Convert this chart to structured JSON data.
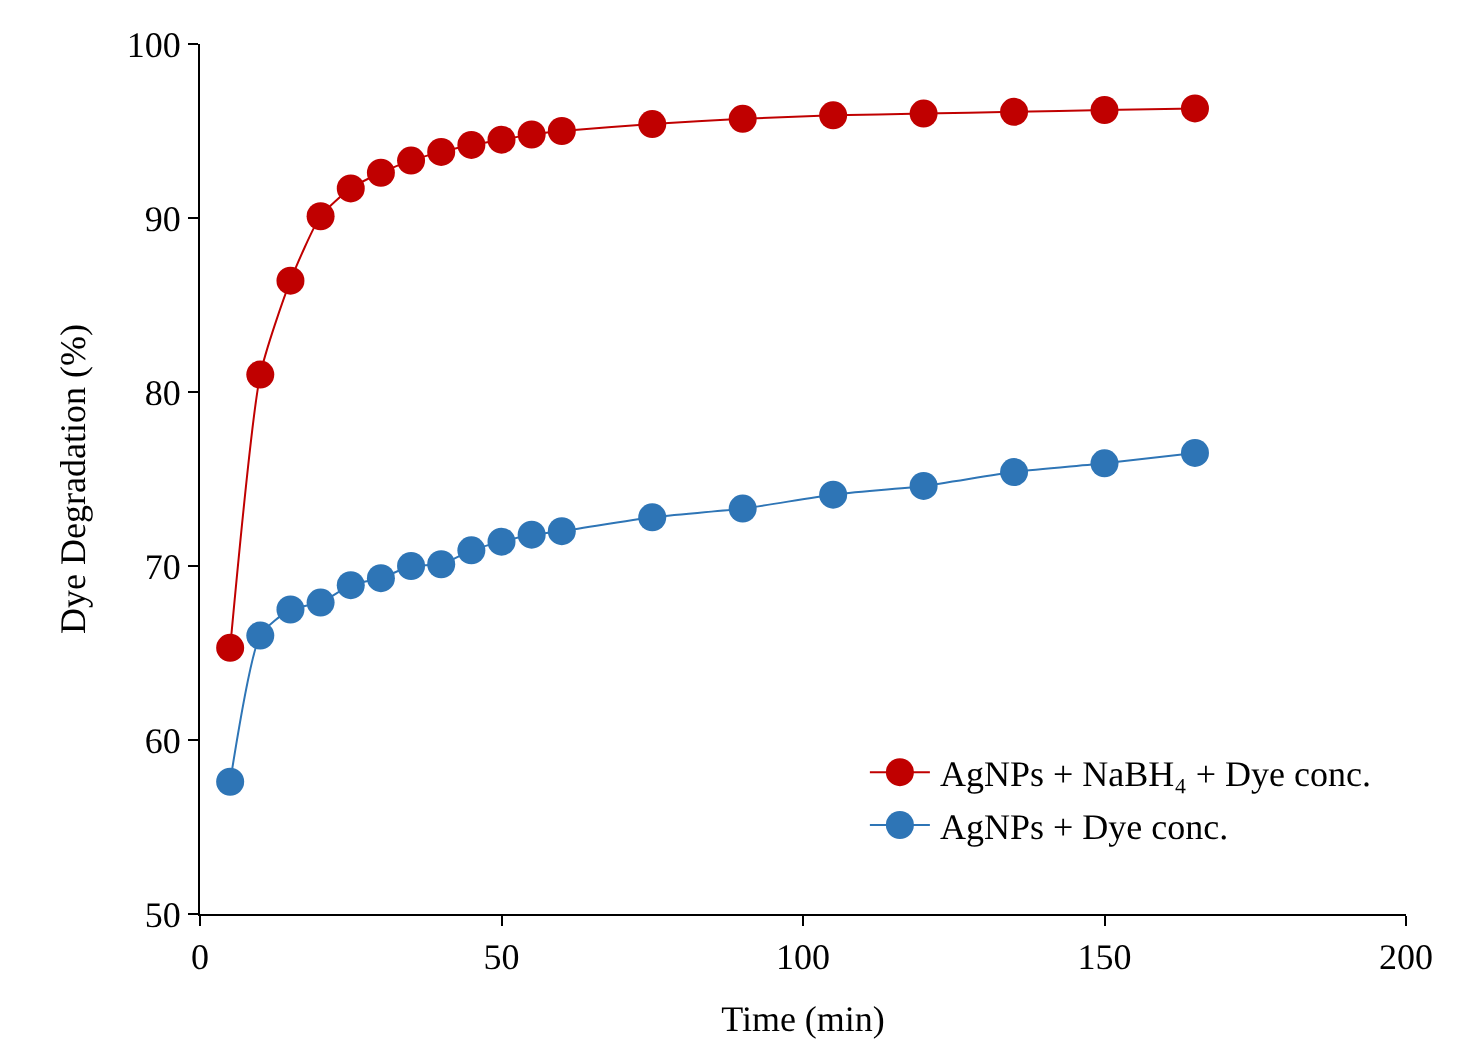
{
  "chart_data": {
    "type": "line",
    "xlabel": "Time (min)",
    "ylabel": "Dye Degradation (%)",
    "x": [
      5,
      10,
      15,
      20,
      25,
      30,
      35,
      40,
      45,
      50,
      55,
      60,
      75,
      90,
      105,
      120,
      135,
      150,
      165
    ],
    "series": [
      {
        "name": "AgNPs + NaBH₄ + Dye conc.",
        "color": "#c00000",
        "values": [
          65.3,
          81,
          86.4,
          90.1,
          91.7,
          92.6,
          93.3,
          93.8,
          94.2,
          94.5,
          94.8,
          95.0,
          95.4,
          95.7,
          95.9,
          96.0,
          96.1,
          96.2,
          96.3
        ]
      },
      {
        "name": "AgNPs + Dye conc.",
        "color": "#2e75b6",
        "values": [
          57.6,
          66,
          67.5,
          67.9,
          68.9,
          69.3,
          70,
          70.1,
          70.9,
          71.4,
          71.8,
          72,
          72.8,
          73.3,
          74.1,
          74.6,
          75.4,
          75.9,
          76.5
        ]
      }
    ],
    "xlim": [
      0,
      200
    ],
    "xticks": [
      0,
      50,
      100,
      150,
      200
    ],
    "ylim": [
      50,
      100
    ],
    "yticks": [
      50,
      60,
      70,
      80,
      90,
      100
    ],
    "legend": "bottom right",
    "marker": "circle",
    "line_style": "solid"
  }
}
